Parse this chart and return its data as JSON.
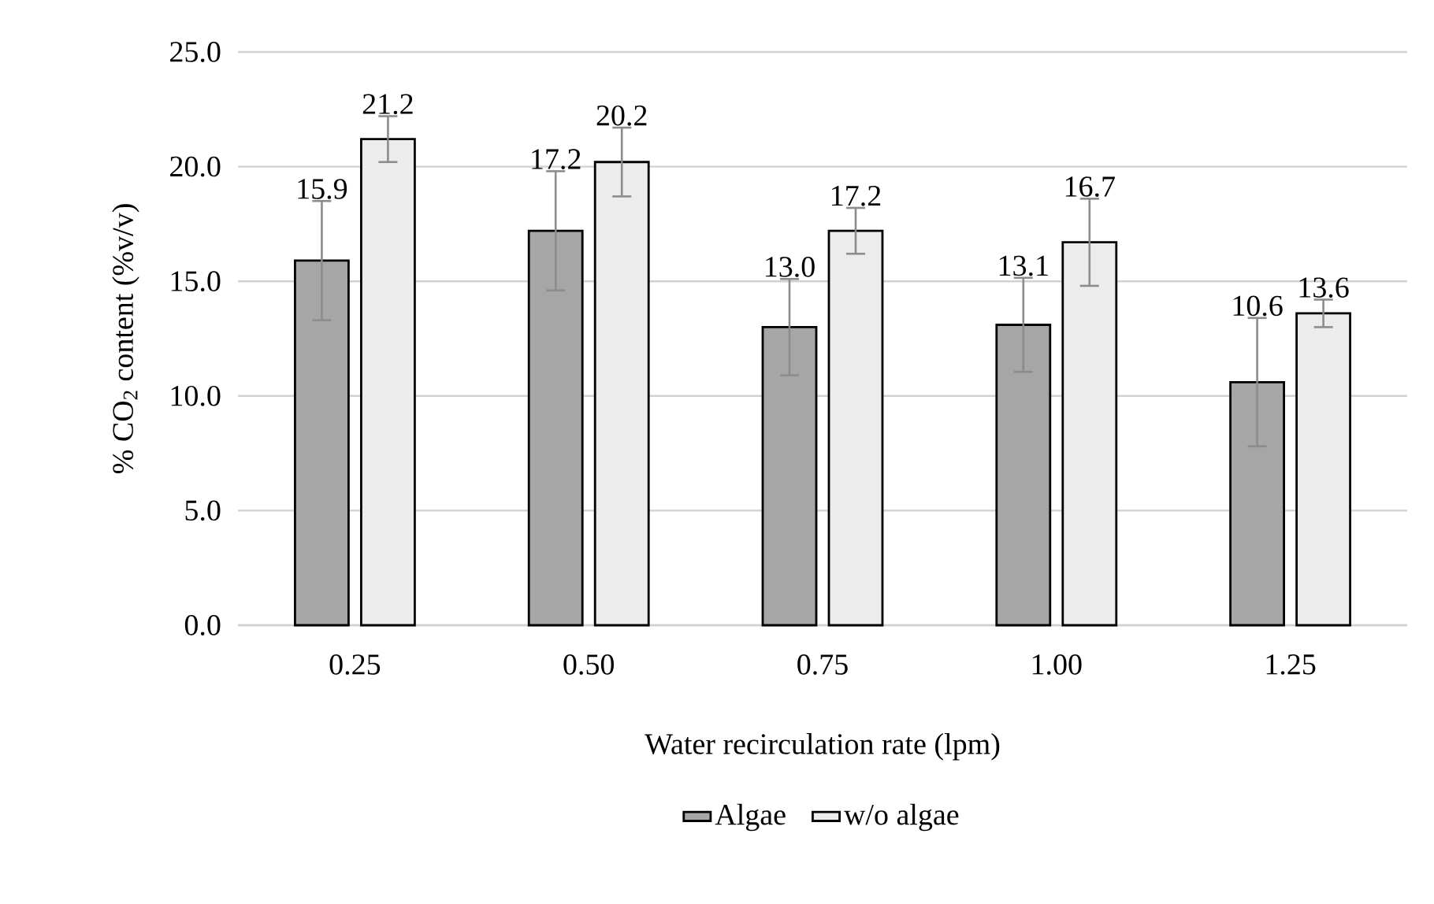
{
  "chart_data": {
    "type": "bar",
    "xlabel": "Water recirculation rate (lpm)",
    "ylabel": "% CO$_{2}$ content (%v/v)",
    "categories": [
      "0.25",
      "0.50",
      "0.75",
      "1.00",
      "1.25"
    ],
    "series": [
      {
        "name": "Algae",
        "color": "#a6a6a6",
        "values": [
          15.9,
          17.2,
          13.0,
          13.1,
          10.6
        ],
        "errors": [
          2.6,
          2.6,
          2.1,
          2.05,
          2.8
        ],
        "value_labels": [
          "15.9",
          "17.2",
          "13.0",
          "13.1",
          "10.6"
        ]
      },
      {
        "name": "w/o algae",
        "color": "#ececec",
        "values": [
          21.2,
          20.2,
          17.2,
          16.7,
          13.6
        ],
        "errors": [
          1.0,
          1.5,
          1.0,
          1.9,
          0.6
        ],
        "value_labels": [
          "21.2",
          "20.2",
          "17.2",
          "16.7",
          "13.6"
        ]
      }
    ],
    "ylim": [
      0,
      25
    ],
    "yticks": [
      {
        "value": 0,
        "label": "0.0"
      },
      {
        "value": 5,
        "label": "5.0"
      },
      {
        "value": 10,
        "label": "10.0"
      },
      {
        "value": 15,
        "label": "15.0"
      },
      {
        "value": 20,
        "label": "20.0"
      },
      {
        "value": 25,
        "label": "25.0"
      }
    ],
    "grid": "y",
    "legend": "bottom"
  }
}
